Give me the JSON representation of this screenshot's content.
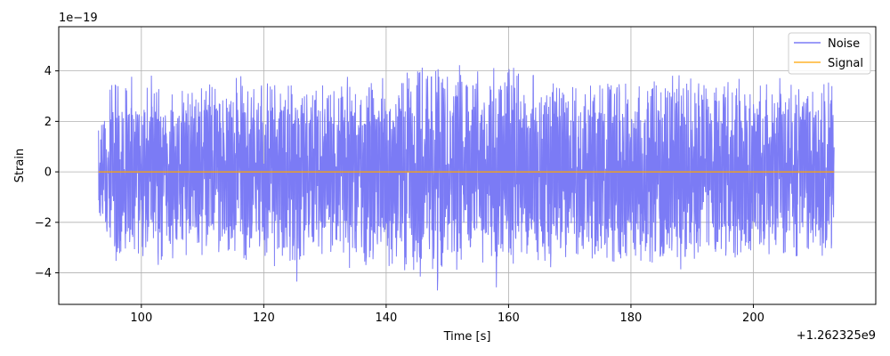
{
  "chart_data": {
    "type": "line",
    "title": "",
    "xlabel": "Time [s]",
    "ylabel": "Strain",
    "x_offset_text": "+1.262325e9",
    "y_offset_text": "1e−19",
    "xlim": [
      86.5,
      220
    ],
    "ylim": [
      -5.25,
      5.75
    ],
    "x_ticks": [
      100,
      120,
      140,
      160,
      180,
      200
    ],
    "x_tick_labels": [
      "100",
      "120",
      "140",
      "160",
      "180",
      "200"
    ],
    "y_ticks": [
      -4,
      -2,
      0,
      2,
      4
    ],
    "y_tick_labels": [
      "−4",
      "−2",
      "0",
      "2",
      "4"
    ],
    "grid": true,
    "legend_position": "upper right",
    "series": [
      {
        "name": "Noise",
        "color": "#7b7bf5",
        "x_range": [
          93,
          213.2
        ],
        "envelope_upper": [
          1.7,
          3.5,
          3.6,
          3.4,
          3.9,
          3.5,
          4.1,
          3.6,
          3.4,
          3.7,
          4.1,
          3.2,
          3.5,
          3.6,
          3.4,
          3.5,
          3.3,
          4.3,
          3.2,
          3.5,
          3.6,
          4.0,
          3.3,
          3.6,
          3.4,
          3.2,
          3.4,
          3.0,
          3.3,
          3.6,
          3.5,
          3.4,
          3.1,
          3.7,
          3.4,
          3.5,
          3.1,
          4.4,
          3.8,
          4.5,
          3.7,
          4.9,
          3.8,
          4.5,
          4.3,
          4.4,
          4.7,
          3.6,
          4.7,
          3.8,
          4.5,
          4.1,
          3.6,
          4.4,
          3.4,
          4.0,
          3.3,
          3.5,
          3.5,
          3.6,
          3.4,
          3.5,
          3.6,
          3.4,
          3.6,
          3.4,
          3.5,
          3.3,
          3.6,
          3.4,
          4.3,
          3.5,
          4.2,
          3.4,
          3.6,
          3.4,
          3.6,
          3.5,
          4.1,
          3.3,
          3.6,
          3.5,
          3.7,
          4.1,
          3.4,
          3.6,
          3.5,
          3.3,
          3.6,
          3.5
        ],
        "envelope_lower": [
          -1.7,
          -3.0,
          -3.1,
          -4.1,
          -3.0,
          -3.5,
          -3.4,
          -4.8,
          -3.0,
          -3.6,
          -3.2,
          -3.1,
          -3.3,
          -3.4,
          -3.3,
          -4.6,
          -3.4,
          -3.2,
          -3.7,
          -3.0,
          -3.5,
          -3.6,
          -3.2,
          -3.4,
          -4.4,
          -3.4,
          -3.2,
          -3.5,
          -3.4,
          -3.1,
          -4.7,
          -3.4,
          -3.5,
          -4.5,
          -3.7,
          -4.3,
          -3.8,
          -4.5,
          -3.6,
          -4.2,
          -3.4,
          -4.5,
          -3.5,
          -3.4,
          -3.2,
          -3.6,
          -3.3,
          -3.5,
          -3.5,
          -3.4,
          -3.5,
          -3.7,
          -3.3,
          -3.2,
          -3.6,
          -3.4,
          -3.3,
          -3.5,
          -3.4,
          -3.6,
          -3.4,
          -3.6,
          -3.5,
          -4.0,
          -3.3,
          -3.4,
          -3.6,
          -3.7,
          -3.4,
          -3.3,
          -3.5,
          -3.4,
          -3.2,
          -3.5,
          -3.4,
          -3.6,
          -3.3,
          -3.2,
          -3.4,
          -3.5,
          -3.3,
          -3.5,
          -3.1,
          -3.5,
          -3.4,
          -3.3,
          -3.2,
          -3.2,
          -3.3,
          -3.0
        ]
      },
      {
        "name": "Signal",
        "color": "#ffa500",
        "x_range": [
          93,
          213.2
        ],
        "values_constant": 0
      }
    ]
  }
}
